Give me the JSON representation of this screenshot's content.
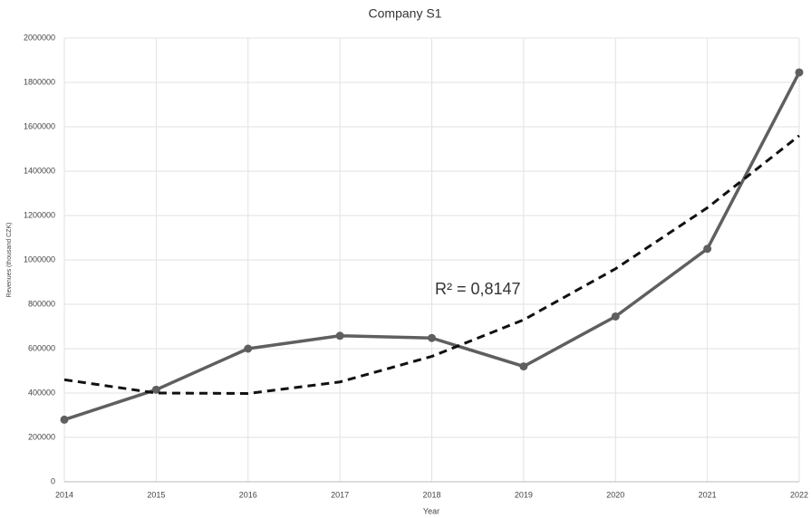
{
  "chart_data": {
    "type": "line",
    "title": "Company S1",
    "x_label": "Year",
    "y_label": "Revenues (thousand CZK)",
    "categories": [
      "2014",
      "2015",
      "2016",
      "2017",
      "2018",
      "2019",
      "2020",
      "2021",
      "2022"
    ],
    "series": [
      {
        "color": "#5f5f5f",
        "values": [
          280000,
          415000,
          600000,
          658000,
          648000,
          520000,
          745000,
          1050000,
          1845000
        ],
        "markers": true
      },
      {
        "color": "#111111",
        "values": [
          460000,
          400000,
          398000,
          450000,
          565000,
          730000,
          960000,
          1235000,
          1560000
        ],
        "dashed": true
      }
    ],
    "annotation": "R² = 0,8147",
    "ylim": [
      0,
      2000000
    ],
    "yticks": [
      0,
      200000,
      400000,
      600000,
      800000,
      1000000,
      1200000,
      1400000,
      1600000,
      1800000,
      2000000
    ],
    "grid": true
  }
}
